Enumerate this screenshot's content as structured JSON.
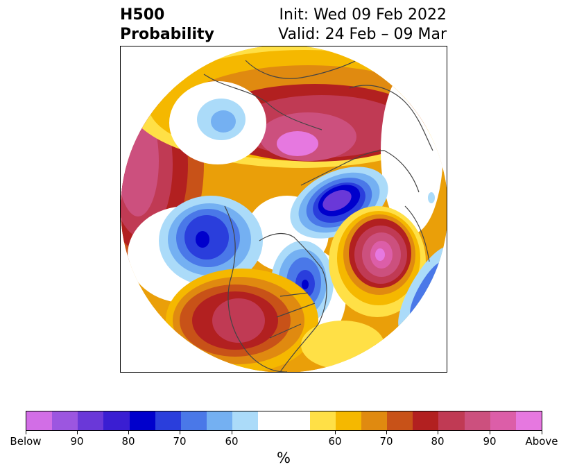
{
  "header": {
    "title_line1": "H500",
    "title_line2": "Probability",
    "init_text": "Init: Wed 09 Feb 2022",
    "valid_text": "Valid: 24 Feb – 09 Mar"
  },
  "colorbar": {
    "unit_label": "%",
    "tick_labels": [
      "Below",
      "90",
      "80",
      "70",
      "60",
      "60",
      "70",
      "80",
      "90",
      "Above"
    ],
    "colors": [
      "#d26ee6",
      "#9c56e0",
      "#6a38d8",
      "#3a1ed2",
      "#0000cc",
      "#2a3edc",
      "#4a78e8",
      "#74b0f2",
      "#abdbf9",
      "#ffffff",
      "#ffe046",
      "#f5b800",
      "#e08a10",
      "#c85218",
      "#b22020",
      "#c03a54",
      "#cc507e",
      "#dc5ea8",
      "#e678e0"
    ]
  },
  "map": {
    "projection": "polar stereographic, north pole",
    "colors": {
      "neg_light": "#abdbf9",
      "neg_mid": "#4a78e8",
      "neg_deep": "#0000cc",
      "neg_core": "#6a38d8",
      "pos_yellow": "#ffe046",
      "pos_gold": "#f5b800",
      "pos_orange": "#e08a10",
      "pos_red": "#b22020",
      "pos_rose": "#cc507e",
      "pos_pink": "#e678e0",
      "coast": "#444444"
    }
  }
}
